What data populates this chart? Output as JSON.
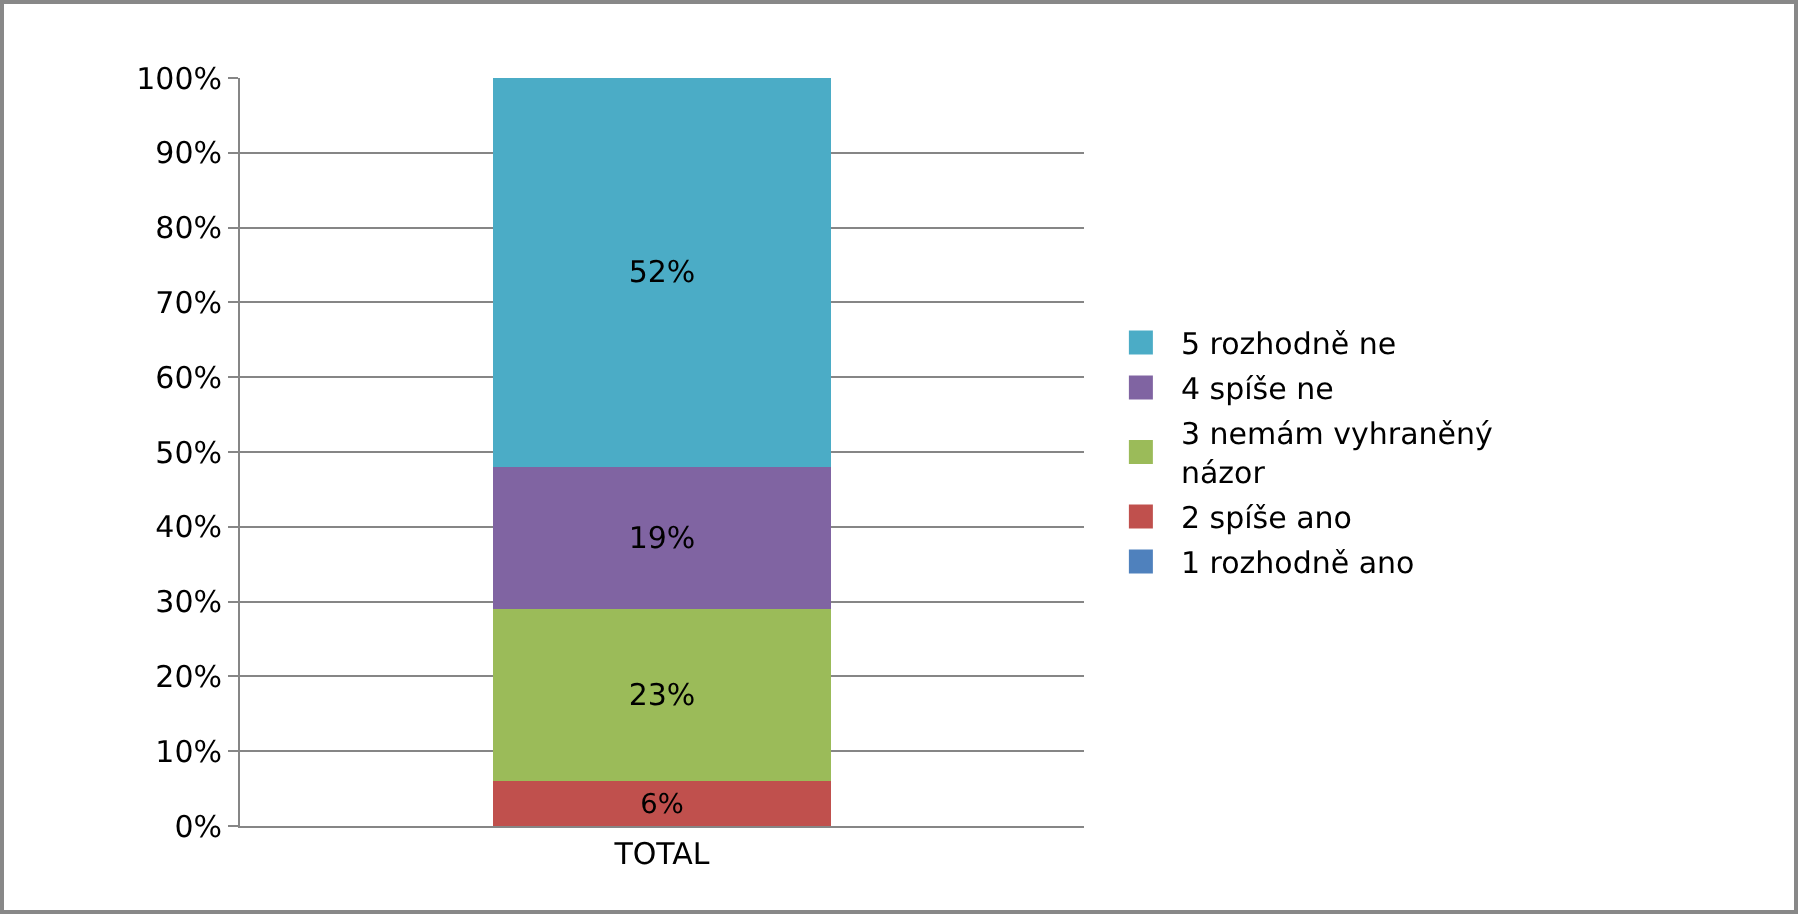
{
  "chart_data": {
    "type": "bar",
    "stacked": true,
    "categories": [
      "TOTAL"
    ],
    "series": [
      {
        "name": "1 rozhodně ano",
        "color": "#4f81bd",
        "values": [
          0
        ],
        "value_labels": [
          null
        ]
      },
      {
        "name": "2 spíše ano",
        "color": "#c0504d",
        "values": [
          6
        ],
        "value_labels": [
          "6%"
        ]
      },
      {
        "name": "3 nemám vyhraněný názor",
        "color": "#9bbb59",
        "values": [
          23
        ],
        "value_labels": [
          "23%"
        ]
      },
      {
        "name": "4 spíše ne",
        "color": "#8064a2",
        "values": [
          19
        ],
        "value_labels": [
          "19%"
        ]
      },
      {
        "name": "5 rozhodně ne",
        "color": "#4bacc6",
        "values": [
          52
        ],
        "value_labels": [
          "52%"
        ]
      }
    ],
    "ylim": [
      0,
      100
    ],
    "yticks": [
      {
        "value": 0,
        "label": "0%"
      },
      {
        "value": 10,
        "label": "10%"
      },
      {
        "value": 20,
        "label": "20%"
      },
      {
        "value": 30,
        "label": "30%"
      },
      {
        "value": 40,
        "label": "40%"
      },
      {
        "value": 50,
        "label": "50%"
      },
      {
        "value": 60,
        "label": "60%"
      },
      {
        "value": 70,
        "label": "70%"
      },
      {
        "value": 80,
        "label": "80%"
      },
      {
        "value": 90,
        "label": "90%"
      },
      {
        "value": 100,
        "label": "100%"
      }
    ],
    "grid": "y",
    "legend": "right"
  }
}
